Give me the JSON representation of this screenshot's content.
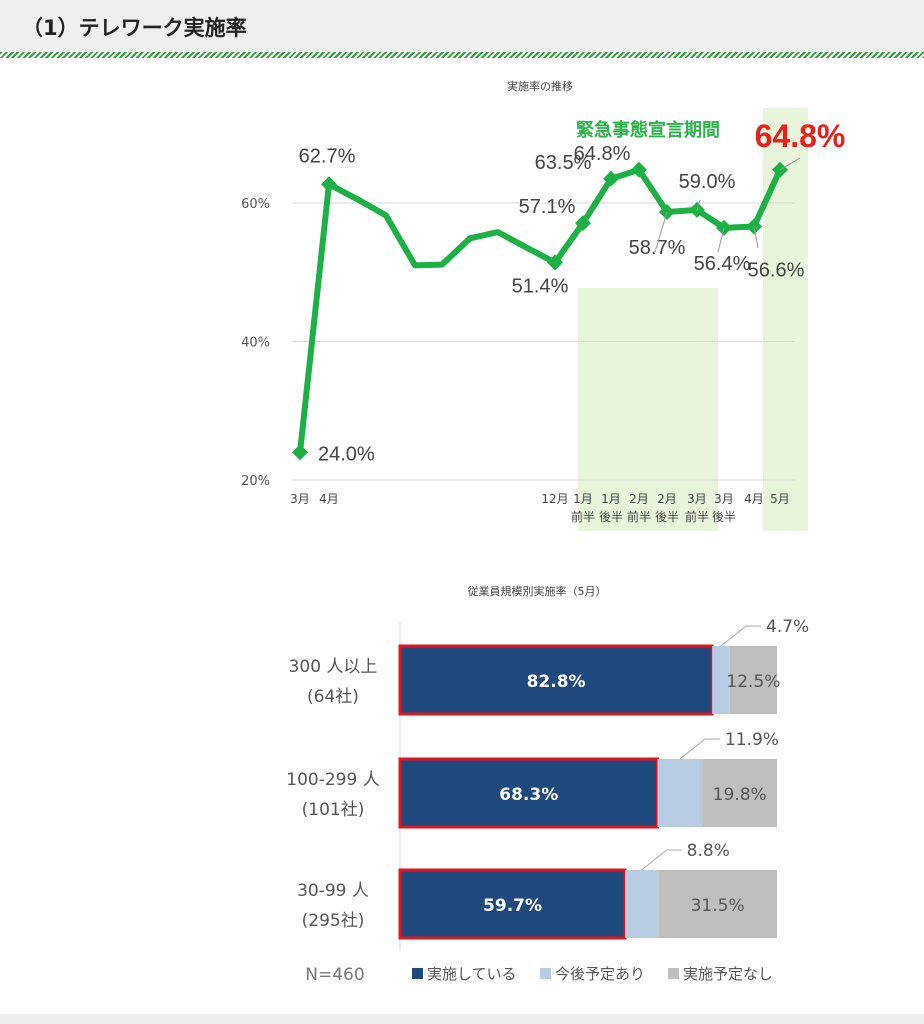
{
  "header": {
    "title": "（1）テレワーク実施率"
  },
  "colors": {
    "line": "#1db045",
    "highlight_band": "#e8f5da",
    "highlight_text": "#e8201a",
    "annotation": "#2db34a",
    "bar_implemented": "#1f497d",
    "bar_planned": "#b8cce4",
    "bar_none": "#bfbfbf",
    "bar_outline": "#e0141e"
  },
  "chart_data": [
    {
      "type": "line",
      "title": "実施率の推移",
      "ylim": [
        20,
        65
      ],
      "yticks": [
        "60%",
        "40%",
        "20%"
      ],
      "ytick_values": [
        60,
        40,
        20
      ],
      "grid": true,
      "annotation": "緊急事態宣言期間",
      "highlight_value_label": "64.8%",
      "x_tick_labels": [
        {
          "i": 0,
          "lines": [
            "3月"
          ]
        },
        {
          "i": 1,
          "lines": [
            "4月"
          ]
        },
        {
          "i": 9,
          "lines": [
            "12月"
          ]
        },
        {
          "i": 10,
          "lines": [
            "1月",
            "前半"
          ]
        },
        {
          "i": 11,
          "lines": [
            "1月",
            "後半"
          ]
        },
        {
          "i": 12,
          "lines": [
            "2月",
            "前半"
          ]
        },
        {
          "i": 13,
          "lines": [
            "2月",
            "後半"
          ]
        },
        {
          "i": 14,
          "lines": [
            "3月",
            "前半"
          ]
        },
        {
          "i": 15,
          "lines": [
            "3月",
            "後半"
          ]
        },
        {
          "i": 16,
          "lines": [
            "4月"
          ]
        },
        {
          "i": 17,
          "lines": [
            "5月"
          ]
        }
      ],
      "values": [
        24.0,
        62.7,
        60.5,
        58.2,
        51.0,
        51.1,
        54.9,
        55.8,
        53.6,
        51.4,
        57.1,
        63.5,
        64.8,
        58.7,
        59.0,
        56.4,
        56.6,
        64.8
      ],
      "markers": [
        0,
        1,
        9,
        10,
        11,
        12,
        13,
        14,
        15,
        16,
        17
      ],
      "data_labels": [
        {
          "i": 0,
          "text": "24.0%"
        },
        {
          "i": 1,
          "text": "62.7%"
        },
        {
          "i": 9,
          "text": "51.4%"
        },
        {
          "i": 10,
          "text": "57.1%"
        },
        {
          "i": 11,
          "text": "63.5%"
        },
        {
          "i": 12,
          "text": "64.8%"
        },
        {
          "i": 13,
          "text": "58.7%"
        },
        {
          "i": 14,
          "text": "59.0%"
        },
        {
          "i": 15,
          "text": "56.4%"
        },
        {
          "i": 16,
          "text": "56.6%"
        }
      ],
      "highlight_ranges": [
        [
          10,
          15
        ],
        [
          16.5,
          17
        ]
      ]
    },
    {
      "type": "bar",
      "orientation": "horizontal",
      "stacked": true,
      "title": "従業員規模別実施率（5月）",
      "categories": [
        {
          "line1": "300 人以上",
          "line2": "(64社)"
        },
        {
          "line1": "100-299 人",
          "line2": "(101社)"
        },
        {
          "line1": "30-99 人",
          "line2": "(295社)"
        }
      ],
      "series": [
        {
          "name": "実施している",
          "values": [
            82.8,
            68.3,
            59.7
          ],
          "labels": [
            "82.8%",
            "68.3%",
            "59.7%"
          ]
        },
        {
          "name": "今後予定あり",
          "values": [
            4.7,
            11.9,
            8.8
          ],
          "labels": [
            "4.7%",
            "11.9%",
            "8.8%"
          ]
        },
        {
          "name": "実施予定なし",
          "values": [
            12.5,
            19.8,
            31.5
          ],
          "labels": [
            "12.5%",
            "19.8%",
            "31.5%"
          ]
        }
      ],
      "note": "N=460"
    }
  ]
}
